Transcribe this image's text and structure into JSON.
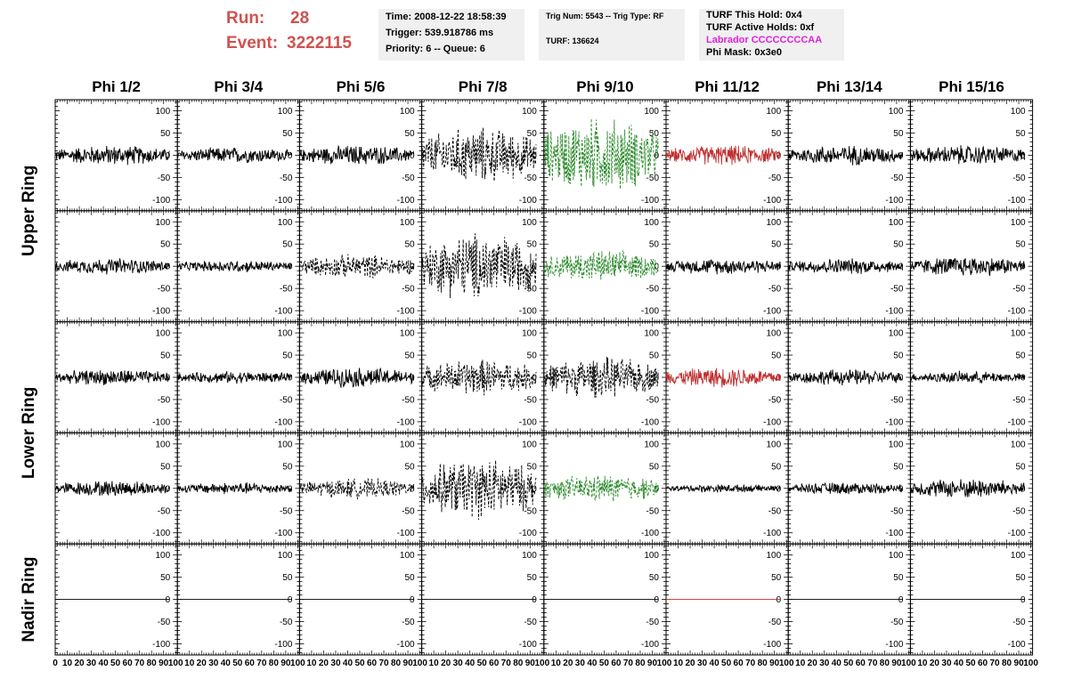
{
  "header": {
    "run_label": "Run:",
    "run_value": "28",
    "event_label": "Event:",
    "event_value": "3222115",
    "color": "#d0524f"
  },
  "info_panels": [
    {
      "lines": [
        {
          "text": "Time: 2008-12-22 18:58:39"
        },
        {
          "text": "Trigger: 539.918786 ms"
        },
        {
          "text": "Priority: 6 -- Queue: 6"
        }
      ]
    },
    {
      "lines": [
        {
          "text": "Trig Num: 5543 -- Trig Type: RF"
        },
        {
          "text": "TURF: 136624"
        }
      ]
    },
    {
      "lines": [
        {
          "text": "TURF This Hold: 0x4"
        },
        {
          "text": "TURF Active Holds: 0xf"
        },
        {
          "text": "Labrador CCCCCCCCAA",
          "color": "#e020e0"
        },
        {
          "text": "Phi Mask: 0x3e0"
        }
      ]
    }
  ],
  "chart_data": {
    "type": "line",
    "columns": [
      "Phi 1/2",
      "Phi 3/4",
      "Phi 5/6",
      "Phi 7/8",
      "Phi 9/10",
      "Phi 11/12",
      "Phi 13/14",
      "Phi 15/16"
    ],
    "ring_labels": [
      "Upper Ring",
      "Lower Ring",
      "Nadir Ring"
    ],
    "rows": 5,
    "xlim": [
      0,
      100
    ],
    "ylim": [
      -125,
      125
    ],
    "x_ticks": [
      "0",
      "10",
      "20",
      "30",
      "40",
      "50",
      "60",
      "70",
      "80",
      "90",
      "100"
    ],
    "y_ticks": [
      "100",
      "50",
      "0",
      "-50",
      "-100"
    ],
    "trace_colors": {
      "normal": "#000000",
      "triggered": "#2a8a2a",
      "masked": "#c03030"
    },
    "trace_styles": [
      [
        "solid",
        "solid",
        "solid",
        "dashed",
        "dashed",
        "solid",
        "solid",
        "solid"
      ],
      [
        "solid",
        "solid",
        "dashed",
        "dashed",
        "dashed",
        "solid",
        "solid",
        "solid"
      ],
      [
        "solid",
        "solid",
        "solid",
        "dashed",
        "dashed",
        "solid",
        "solid",
        "solid"
      ],
      [
        "solid",
        "solid",
        "dashed",
        "dashed",
        "dashed",
        "solid",
        "solid",
        "solid"
      ],
      [
        "solid",
        "solid",
        "solid",
        "solid",
        "solid",
        "solid",
        "solid",
        "solid"
      ]
    ],
    "trace_color_keys": [
      [
        "normal",
        "normal",
        "normal",
        "normal",
        "triggered",
        "masked",
        "normal",
        "normal"
      ],
      [
        "normal",
        "normal",
        "normal",
        "normal",
        "triggered",
        "normal",
        "normal",
        "normal"
      ],
      [
        "normal",
        "normal",
        "normal",
        "normal",
        "normal",
        "masked",
        "normal",
        "normal"
      ],
      [
        "normal",
        "normal",
        "normal",
        "normal",
        "triggered",
        "normal",
        "normal",
        "normal"
      ],
      [
        "normal",
        "normal",
        "normal",
        "normal",
        "normal",
        "masked",
        "normal",
        "normal"
      ]
    ],
    "trace_amplitudes": [
      [
        25,
        20,
        25,
        70,
        95,
        25,
        25,
        25
      ],
      [
        20,
        15,
        30,
        85,
        40,
        20,
        20,
        25
      ],
      [
        20,
        15,
        25,
        45,
        50,
        25,
        20,
        15
      ],
      [
        20,
        15,
        25,
        75,
        35,
        10,
        15,
        25
      ],
      [
        0,
        0,
        0,
        0,
        0,
        0,
        0,
        0
      ]
    ]
  }
}
